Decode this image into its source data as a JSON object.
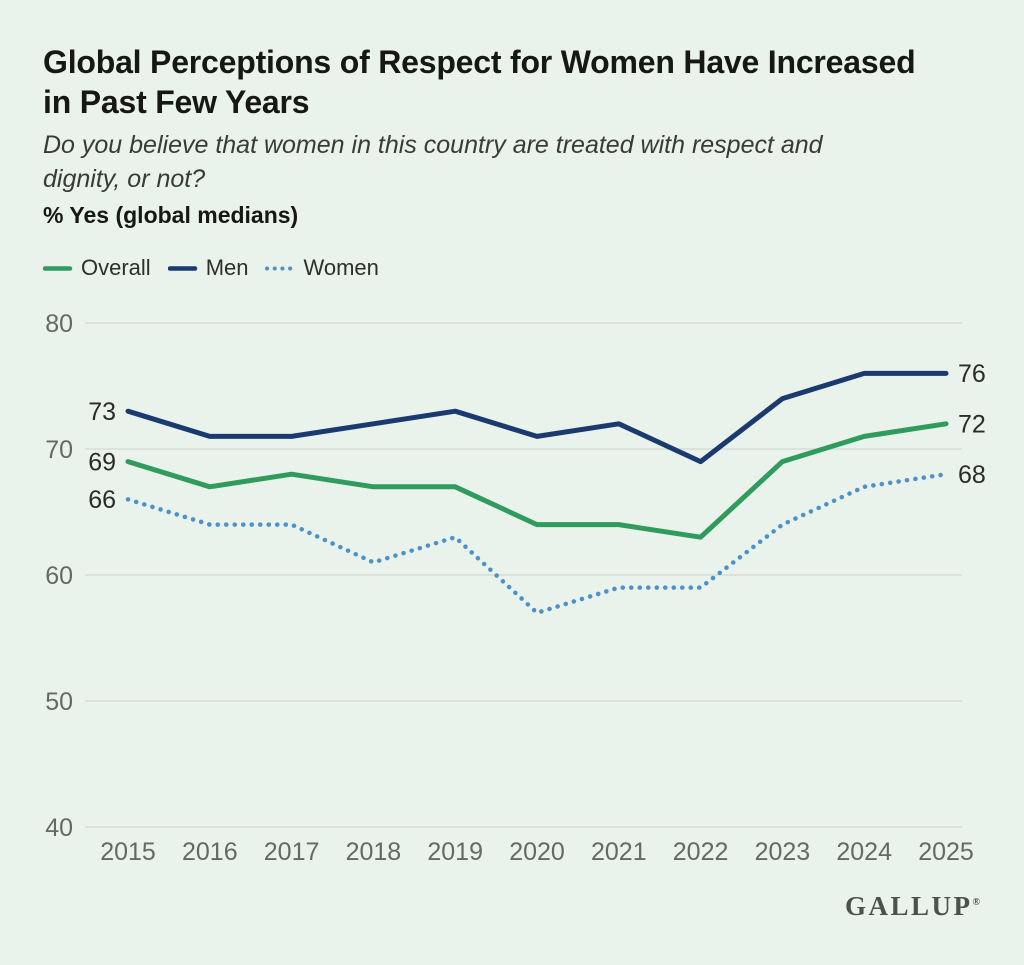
{
  "header": {
    "title_line1": "Global Perceptions of Respect for Women Have Increased",
    "title_line2": "in Past Few Years",
    "subtitle_line1": "Do you believe that women in this country are treated with respect and",
    "subtitle_line2": "dignity, or not?",
    "metric_label": "% Yes (global medians)"
  },
  "chart_data": {
    "type": "line",
    "title": "Global Perceptions of Respect for Women Have Increased in Past Few Years",
    "subtitle": "Do you believe that women in this country are treated with respect and dignity, or not?",
    "unit_note": "% Yes (global medians)",
    "x": [
      2015,
      2016,
      2017,
      2018,
      2019,
      2020,
      2021,
      2022,
      2023,
      2024,
      2025
    ],
    "series": [
      {
        "name": "Overall",
        "color": "#2f9c5e",
        "line_style": "solid",
        "values": [
          69,
          67,
          68,
          67,
          67,
          64,
          64,
          63,
          69,
          71,
          72
        ],
        "first_label": "69",
        "last_label": "72"
      },
      {
        "name": "Men",
        "color": "#1a3a70",
        "line_style": "solid",
        "values": [
          73,
          71,
          71,
          72,
          73,
          71,
          72,
          69,
          74,
          76,
          76
        ],
        "first_label": "73",
        "last_label": "76"
      },
      {
        "name": "Women",
        "color": "#4b92c8",
        "line_style": "dotted",
        "values": [
          66,
          64,
          64,
          61,
          63,
          57,
          59,
          59,
          64,
          67,
          68
        ],
        "first_label": "66",
        "last_label": "68"
      }
    ],
    "ylim": [
      40,
      80
    ],
    "yticks": [
      80,
      70,
      60,
      50,
      40
    ],
    "grid": true,
    "legend_position": "top",
    "edge_labels": "first_and_last_points"
  },
  "footer": {
    "logo_text": "GALLUP",
    "logo_mark": "®"
  },
  "colors": {
    "bg": "#eaf2ec",
    "title": "#171714",
    "subtitle": "#3a3a36",
    "legend_text": "#2e2e2a",
    "axis_label": "#646a63",
    "edge_label": "#2b2b27",
    "grid": "#d6ded7",
    "logo": "#4c514b"
  }
}
